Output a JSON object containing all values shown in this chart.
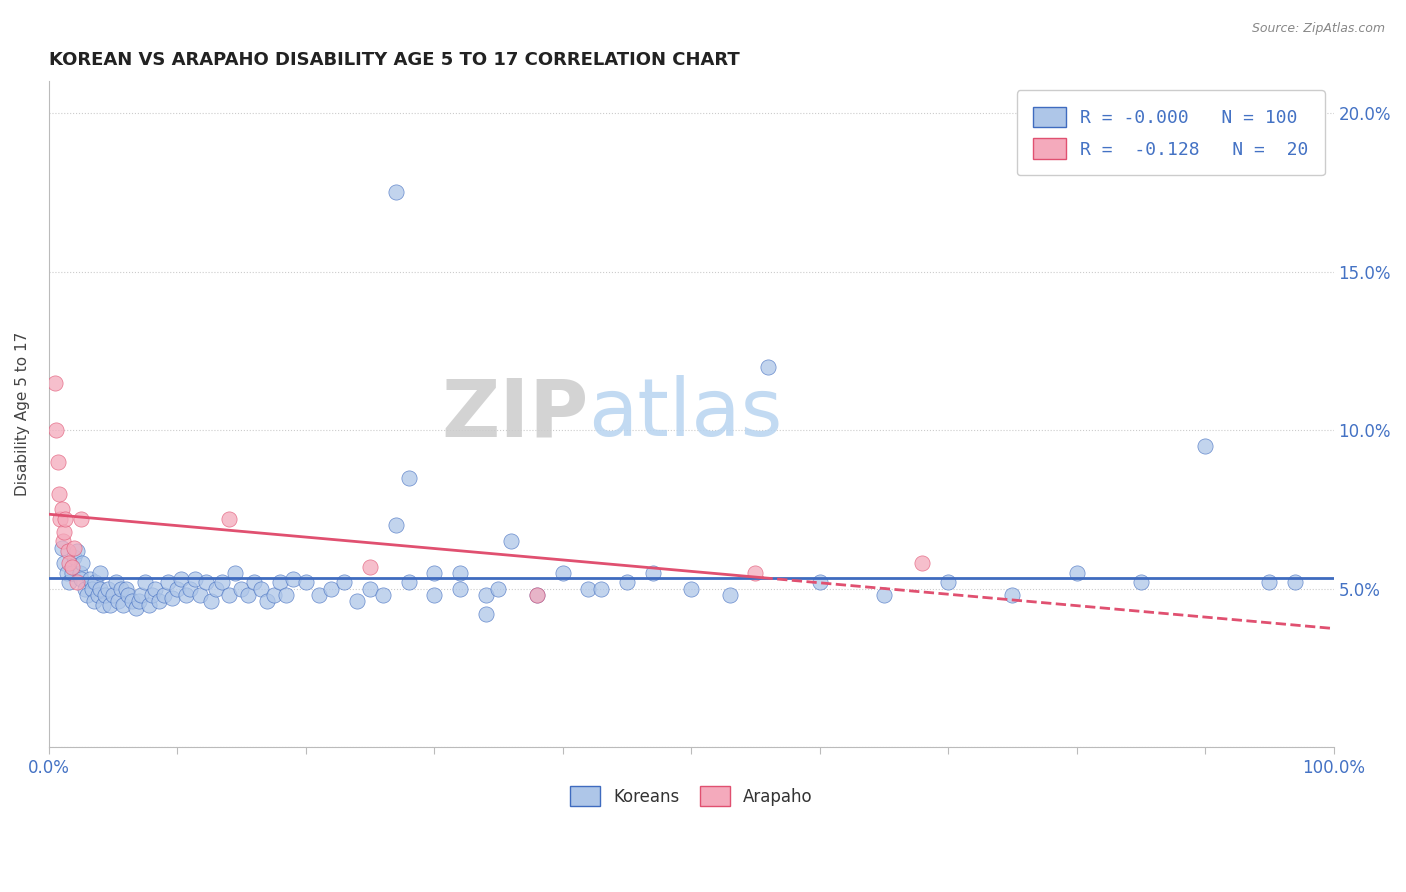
{
  "title": "KOREAN VS ARAPAHO DISABILITY AGE 5 TO 17 CORRELATION CHART",
  "source": "Source: ZipAtlas.com",
  "ylabel": "Disability Age 5 to 17",
  "xlim": [
    0.0,
    1.0
  ],
  "ylim": [
    0.0,
    0.21
  ],
  "korean_R": "-0.000",
  "korean_N": 100,
  "arapaho_R": "-0.128",
  "arapaho_N": 20,
  "korean_color": "#aec6e8",
  "arapaho_color": "#f4aabc",
  "korean_line_color": "#3f6bbf",
  "arapaho_line_color": "#e05070",
  "watermark_zip": "ZIP",
  "watermark_atlas": "atlas",
  "background_color": "#ffffff",
  "korean_scatter_x": [
    0.01,
    0.012,
    0.014,
    0.016,
    0.018,
    0.02,
    0.022,
    0.024,
    0.025,
    0.026,
    0.028,
    0.03,
    0.032,
    0.034,
    0.035,
    0.036,
    0.038,
    0.04,
    0.04,
    0.042,
    0.044,
    0.046,
    0.048,
    0.05,
    0.052,
    0.054,
    0.056,
    0.058,
    0.06,
    0.062,
    0.065,
    0.068,
    0.07,
    0.072,
    0.075,
    0.078,
    0.08,
    0.083,
    0.086,
    0.09,
    0.093,
    0.096,
    0.1,
    0.103,
    0.107,
    0.11,
    0.114,
    0.118,
    0.122,
    0.126,
    0.13,
    0.135,
    0.14,
    0.145,
    0.15,
    0.155,
    0.16,
    0.165,
    0.17,
    0.175,
    0.18,
    0.185,
    0.19,
    0.2,
    0.21,
    0.22,
    0.23,
    0.24,
    0.25,
    0.26,
    0.27,
    0.28,
    0.3,
    0.32,
    0.34,
    0.36,
    0.38,
    0.4,
    0.42,
    0.45,
    0.28,
    0.3,
    0.32,
    0.34,
    0.47,
    0.5,
    0.53,
    0.56,
    0.6,
    0.65,
    0.7,
    0.75,
    0.8,
    0.85,
    0.9,
    0.95,
    0.27,
    0.35,
    0.43,
    0.97
  ],
  "korean_scatter_y": [
    0.063,
    0.058,
    0.055,
    0.052,
    0.055,
    0.06,
    0.062,
    0.055,
    0.053,
    0.058,
    0.05,
    0.048,
    0.053,
    0.05,
    0.046,
    0.052,
    0.048,
    0.055,
    0.05,
    0.045,
    0.048,
    0.05,
    0.045,
    0.048,
    0.052,
    0.046,
    0.05,
    0.045,
    0.05,
    0.048,
    0.046,
    0.044,
    0.046,
    0.048,
    0.052,
    0.045,
    0.048,
    0.05,
    0.046,
    0.048,
    0.052,
    0.047,
    0.05,
    0.053,
    0.048,
    0.05,
    0.053,
    0.048,
    0.052,
    0.046,
    0.05,
    0.052,
    0.048,
    0.055,
    0.05,
    0.048,
    0.052,
    0.05,
    0.046,
    0.048,
    0.052,
    0.048,
    0.053,
    0.052,
    0.048,
    0.05,
    0.052,
    0.046,
    0.05,
    0.048,
    0.07,
    0.052,
    0.055,
    0.05,
    0.048,
    0.065,
    0.048,
    0.055,
    0.05,
    0.052,
    0.085,
    0.048,
    0.055,
    0.042,
    0.055,
    0.05,
    0.048,
    0.12,
    0.052,
    0.048,
    0.052,
    0.048,
    0.055,
    0.052,
    0.095,
    0.052,
    0.175,
    0.05,
    0.05,
    0.052
  ],
  "arapaho_scatter_x": [
    0.005,
    0.006,
    0.007,
    0.008,
    0.009,
    0.01,
    0.011,
    0.012,
    0.013,
    0.015,
    0.016,
    0.018,
    0.02,
    0.022,
    0.025,
    0.14,
    0.25,
    0.38,
    0.55,
    0.68
  ],
  "arapaho_scatter_y": [
    0.115,
    0.1,
    0.09,
    0.08,
    0.072,
    0.075,
    0.065,
    0.068,
    0.072,
    0.062,
    0.058,
    0.057,
    0.063,
    0.052,
    0.072,
    0.072,
    0.057,
    0.048,
    0.055,
    0.058
  ]
}
